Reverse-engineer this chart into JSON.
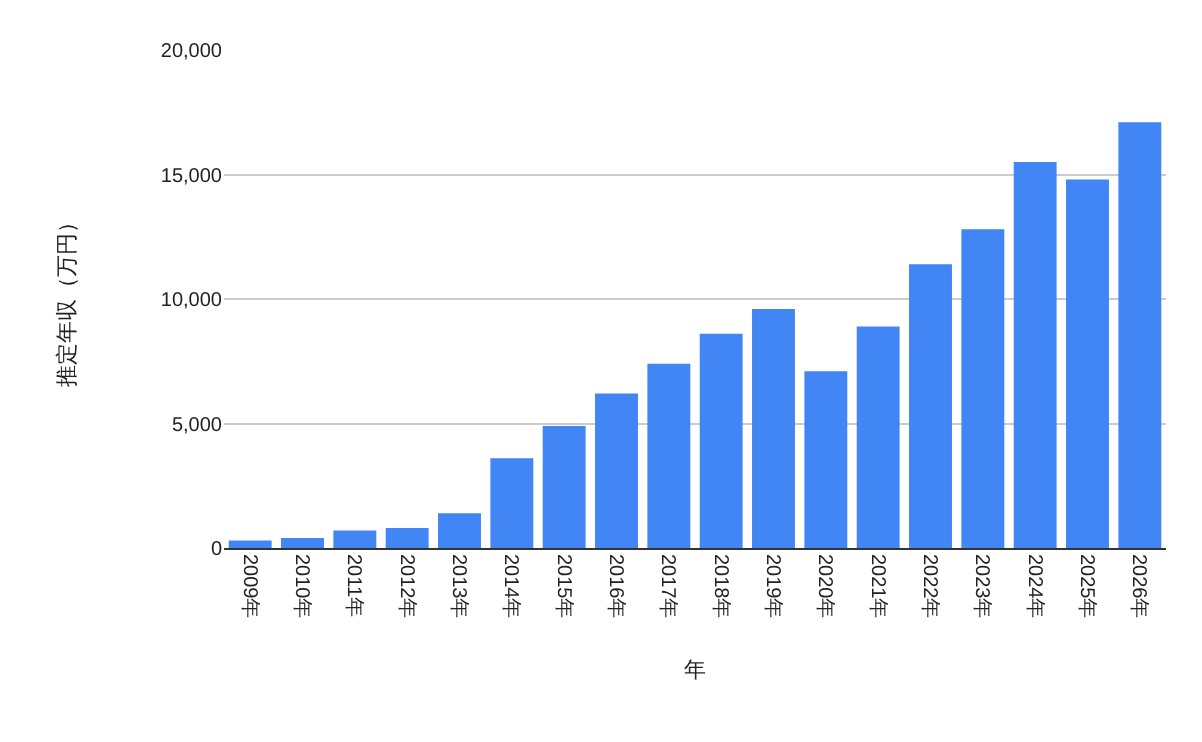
{
  "chart_data": {
    "type": "bar",
    "xlabel": "年",
    "ylabel": "推定年収（万円）",
    "categories": [
      "2009年",
      "2010年",
      "2011年",
      "2012年",
      "2013年",
      "2014年",
      "2015年",
      "2016年",
      "2017年",
      "2018年",
      "2019年",
      "2020年",
      "2021年",
      "2022年",
      "2023年",
      "2024年",
      "2025年",
      "2026年"
    ],
    "values": [
      300,
      400,
      700,
      800,
      1400,
      3600,
      4900,
      6200,
      7400,
      8600,
      9600,
      7100,
      8900,
      11400,
      12800,
      15500,
      14800,
      17100
    ],
    "color": "#4285f4",
    "ylim": [
      0,
      20000
    ],
    "yticks": [
      {
        "value": 0,
        "label": "0"
      },
      {
        "value": 5000,
        "label": "5,000"
      },
      {
        "value": 10000,
        "label": "10,000"
      },
      {
        "value": 15000,
        "label": "15,000"
      },
      {
        "value": 20000,
        "label": "20,000"
      }
    ],
    "grid": "y"
  }
}
